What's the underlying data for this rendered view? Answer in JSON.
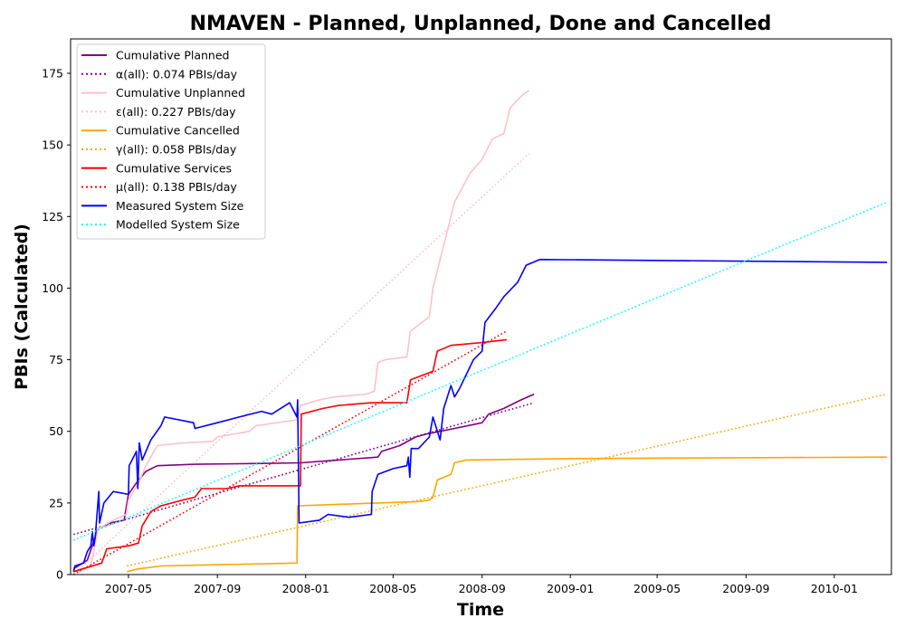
{
  "chart_data": {
    "type": "line",
    "title": "NMAVEN - Planned, Unplanned, Done  and Cancelled",
    "xlabel": "Time",
    "ylabel": "PBIs (Calculated)",
    "xlim": [
      "2007-02-10",
      "2010-03-21"
    ],
    "ylim": [
      0,
      187
    ],
    "x_ticks": [
      "2007-05",
      "2007-09",
      "2008-01",
      "2008-05",
      "2008-09",
      "2009-01",
      "2009-05",
      "2009-09",
      "2010-01"
    ],
    "y_ticks": [
      0,
      25,
      50,
      75,
      100,
      125,
      150,
      175
    ],
    "grid": false,
    "legend_position": "upper-left",
    "series": [
      {
        "name": "Cumulative Planned",
        "color": "#800080",
        "style": "solid",
        "points": [
          [
            "2007-02-14",
            2
          ],
          [
            "2007-03-05",
            5
          ],
          [
            "2007-03-20",
            16
          ],
          [
            "2007-04-05",
            18
          ],
          [
            "2007-04-25",
            19
          ],
          [
            "2007-05-01",
            28
          ],
          [
            "2007-05-12",
            32
          ],
          [
            "2007-05-25",
            36
          ],
          [
            "2007-06-10",
            38
          ],
          [
            "2007-08-01",
            38.5
          ],
          [
            "2007-11-01",
            38.8
          ],
          [
            "2007-12-25",
            39
          ],
          [
            "2008-02-15",
            40
          ],
          [
            "2008-04-10",
            41
          ],
          [
            "2008-04-15",
            43
          ],
          [
            "2008-05-10",
            45
          ],
          [
            "2008-06-01",
            48
          ],
          [
            "2008-06-15",
            49
          ],
          [
            "2008-07-05",
            50
          ],
          [
            "2008-07-25",
            51
          ],
          [
            "2008-09-01",
            53
          ],
          [
            "2008-09-10",
            56
          ],
          [
            "2008-10-01",
            58
          ],
          [
            "2008-10-25",
            61
          ],
          [
            "2008-11-12",
            63
          ]
        ]
      },
      {
        "name": "α(all): 0.074 PBIs/day",
        "color": "#800080",
        "style": "dotted",
        "points": [
          [
            "2007-02-14",
            14
          ],
          [
            "2008-11-12",
            60
          ]
        ]
      },
      {
        "name": "Cumulative Unplanned",
        "color": "#ffc0cb",
        "style": "solid",
        "points": [
          [
            "2007-02-14",
            1
          ],
          [
            "2007-03-10",
            3
          ],
          [
            "2007-03-20",
            16
          ],
          [
            "2007-04-10",
            19
          ],
          [
            "2007-04-28",
            21
          ],
          [
            "2007-05-01",
            26
          ],
          [
            "2007-05-15",
            32
          ],
          [
            "2007-05-25",
            38
          ],
          [
            "2007-06-10",
            45
          ],
          [
            "2007-07-15",
            46
          ],
          [
            "2007-08-25",
            46.5
          ],
          [
            "2007-09-01",
            48
          ],
          [
            "2007-10-15",
            50
          ],
          [
            "2007-10-25",
            52
          ],
          [
            "2007-12-20",
            54
          ],
          [
            "2007-12-25",
            59
          ],
          [
            "2008-01-20",
            61
          ],
          [
            "2008-02-10",
            62
          ],
          [
            "2008-03-25",
            63
          ],
          [
            "2008-04-05",
            64
          ],
          [
            "2008-04-10",
            74
          ],
          [
            "2008-04-20",
            75
          ],
          [
            "2008-05-20",
            76
          ],
          [
            "2008-05-25",
            85
          ],
          [
            "2008-06-20",
            90
          ],
          [
            "2008-06-25",
            100
          ],
          [
            "2008-07-05",
            110
          ],
          [
            "2008-07-15",
            120
          ],
          [
            "2008-07-25",
            130
          ],
          [
            "2008-08-15",
            140
          ],
          [
            "2008-09-01",
            145
          ],
          [
            "2008-09-15",
            152
          ],
          [
            "2008-10-01",
            154
          ],
          [
            "2008-10-10",
            163
          ],
          [
            "2008-10-25",
            167
          ],
          [
            "2008-11-05",
            169
          ]
        ]
      },
      {
        "name": "ε(all): 0.227 PBIs/day",
        "color": "#ffc0cb",
        "style": "dotted",
        "points": [
          [
            "2007-02-14",
            0
          ],
          [
            "2008-11-05",
            147
          ]
        ]
      },
      {
        "name": "Cumulative Cancelled",
        "color": "#ffa500",
        "style": "solid",
        "points": [
          [
            "2007-04-29",
            1
          ],
          [
            "2007-05-15",
            2
          ],
          [
            "2007-06-15",
            3
          ],
          [
            "2007-12-20",
            4
          ],
          [
            "2007-12-21",
            24
          ],
          [
            "2008-02-15",
            24.5
          ],
          [
            "2008-06-05",
            25.5
          ],
          [
            "2008-06-20",
            26
          ],
          [
            "2008-06-25",
            27
          ],
          [
            "2008-07-01",
            33
          ],
          [
            "2008-07-20",
            35
          ],
          [
            "2008-07-25",
            39
          ],
          [
            "2008-08-10",
            40
          ],
          [
            "2009-01-01",
            40.5
          ],
          [
            "2010-03-15",
            41
          ]
        ]
      },
      {
        "name": "γ(all): 0.058 PBIs/day",
        "color": "#ffa500",
        "style": "dotted",
        "points": [
          [
            "2007-04-29",
            3
          ],
          [
            "2010-03-15",
            63
          ]
        ]
      },
      {
        "name": "Cumulative Services",
        "color": "#ff0000",
        "style": "solid",
        "points": [
          [
            "2007-02-14",
            1
          ],
          [
            "2007-03-25",
            4
          ],
          [
            "2007-04-01",
            9
          ],
          [
            "2007-05-01",
            10
          ],
          [
            "2007-05-15",
            11
          ],
          [
            "2007-05-20",
            17
          ],
          [
            "2007-06-01",
            22
          ],
          [
            "2007-06-15",
            24
          ],
          [
            "2007-07-15",
            26
          ],
          [
            "2007-08-01",
            27
          ],
          [
            "2007-08-10",
            30
          ],
          [
            "2007-09-15",
            30
          ],
          [
            "2007-10-01",
            31
          ],
          [
            "2007-12-25",
            31
          ],
          [
            "2007-12-26",
            56
          ],
          [
            "2008-01-25",
            58
          ],
          [
            "2008-02-15",
            59
          ],
          [
            "2008-04-01",
            60
          ],
          [
            "2008-05-20",
            60
          ],
          [
            "2008-05-25",
            68
          ],
          [
            "2008-06-15",
            70
          ],
          [
            "2008-06-25",
            71
          ],
          [
            "2008-07-01",
            78
          ],
          [
            "2008-07-20",
            80
          ],
          [
            "2008-09-01",
            81
          ],
          [
            "2008-10-05",
            82
          ]
        ]
      },
      {
        "name": "μ(all): 0.138 PBIs/day",
        "color": "#ff0000",
        "style": "dotted",
        "points": [
          [
            "2007-02-14",
            0
          ],
          [
            "2008-10-05",
            85
          ]
        ]
      },
      {
        "name": "Measured System Size",
        "color": "#0000ff",
        "style": "solid",
        "points": [
          [
            "2007-02-14",
            1
          ],
          [
            "2007-02-16",
            3
          ],
          [
            "2007-02-28",
            4
          ],
          [
            "2007-03-05",
            8
          ],
          [
            "2007-03-10",
            10
          ],
          [
            "2007-03-12",
            15
          ],
          [
            "2007-03-14",
            10
          ],
          [
            "2007-03-16",
            13
          ],
          [
            "2007-03-21",
            29
          ],
          [
            "2007-03-22",
            18
          ],
          [
            "2007-03-28",
            25
          ],
          [
            "2007-04-10",
            29
          ],
          [
            "2007-05-01",
            28
          ],
          [
            "2007-05-02",
            38
          ],
          [
            "2007-05-12",
            43
          ],
          [
            "2007-05-14",
            30
          ],
          [
            "2007-05-16",
            46
          ],
          [
            "2007-05-20",
            40
          ],
          [
            "2007-06-01",
            47
          ],
          [
            "2007-06-15",
            52
          ],
          [
            "2007-06-20",
            55
          ],
          [
            "2007-07-30",
            53
          ],
          [
            "2007-08-01",
            51
          ],
          [
            "2007-09-01",
            53
          ],
          [
            "2007-10-01",
            55
          ],
          [
            "2007-11-01",
            57
          ],
          [
            "2007-11-15",
            56
          ],
          [
            "2007-12-10",
            60
          ],
          [
            "2007-12-20",
            55
          ],
          [
            "2007-12-21",
            61
          ],
          [
            "2007-12-23",
            18
          ],
          [
            "2008-01-20",
            19
          ],
          [
            "2008-02-01",
            21
          ],
          [
            "2008-03-01",
            20
          ],
          [
            "2008-04-01",
            21
          ],
          [
            "2008-04-02",
            29
          ],
          [
            "2008-04-10",
            35
          ],
          [
            "2008-05-01",
            37
          ],
          [
            "2008-05-20",
            38
          ],
          [
            "2008-05-22",
            41
          ],
          [
            "2008-05-24",
            34
          ],
          [
            "2008-05-26",
            44
          ],
          [
            "2008-06-05",
            44
          ],
          [
            "2008-06-20",
            48
          ],
          [
            "2008-06-25",
            55
          ],
          [
            "2008-07-05",
            47
          ],
          [
            "2008-07-10",
            58
          ],
          [
            "2008-07-20",
            66
          ],
          [
            "2008-07-25",
            62
          ],
          [
            "2008-08-01",
            65
          ],
          [
            "2008-08-20",
            75
          ],
          [
            "2008-09-01",
            78
          ],
          [
            "2008-09-05",
            88
          ],
          [
            "2008-09-20",
            93
          ],
          [
            "2008-10-01",
            97
          ],
          [
            "2008-10-20",
            102
          ],
          [
            "2008-11-01",
            108
          ],
          [
            "2008-11-20",
            110
          ],
          [
            "2010-03-15",
            109
          ]
        ]
      },
      {
        "name": "Modelled System Size",
        "color": "#00ffff",
        "style": "dotted",
        "points": [
          [
            "2007-02-14",
            12
          ],
          [
            "2010-03-15",
            130
          ]
        ]
      }
    ]
  }
}
